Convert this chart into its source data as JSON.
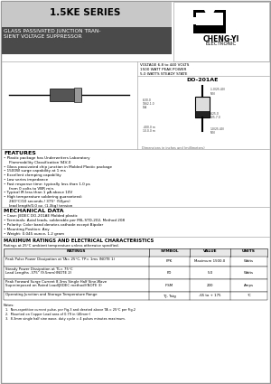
{
  "title": "1.5KE SERIES",
  "subtitle": "GLASS PASSIVATED JUNCTION TRAN-\nSIENT VOLTAGE SUPPRESSOR",
  "company": "CHENG-YI",
  "company_sub": "ELECTRONIC",
  "voltage_range": "VOLTAGE 6.8 to 440 VOLTS",
  "power1": "1500 WATT PEAK POWER",
  "power2": "5.0 WATTS STEADY STATE",
  "package": "DO-201AE",
  "features_title": "FEATURES",
  "features": [
    "Plastic package has Underwriters Laboratory",
    "  Flammability Classification 94V-0",
    "Glass passivated chip junction in Molded Plastic package",
    "1500W surge capability at 1 ms",
    "Excellent clamping capability",
    "Low series impedance",
    "Fast response time: typically less than 1.0 ps",
    "  from 0 volts to VBR min.",
    "Typical IR less than 1 μA above 10V",
    "High temperature soldering guaranteed:",
    "  260°C/10 seconds / 375° (50μm)",
    "  lead length/0.0 oz. (1.3kg) tension"
  ],
  "features_bullets": [
    true,
    false,
    true,
    true,
    true,
    true,
    true,
    false,
    true,
    true,
    false,
    false
  ],
  "mech_title": "MECHANICAL DATA",
  "mech_data": [
    "Case: JEDEC DO-201AE Molded plastic",
    "Terminals: Axial leads, solderable per MIL-STD-202, Method 208",
    "Polarity: Color band denotes cathode except Bipolar",
    "Mounting Position: Any",
    "Weight: 0.045 ounce, 1.2 gram"
  ],
  "max_ratings_title": "MAXIMUM RATINGS AND ELECTRICAL CHARACTERISTICS",
  "max_ratings_sub": "Ratings at 25°C ambient temperature unless otherwise specified.",
  "table_headers": [
    "RATINGS",
    "SYMBOL",
    "VALUE",
    "UNITS"
  ],
  "table_rows": [
    [
      "Peak Pulse Power Dissipation at TA= 25°C, TP= 1ms (NOTE 1)",
      "PPK",
      "Maximum 1500.0",
      "Watts"
    ],
    [
      "Steady Power Dissipation at TL= 75°C\nLead Lengths .375\" (9.5mm)(NOTE 2)",
      "PD",
      "5.0",
      "Watts"
    ],
    [
      "Peak Forward Surge Current 8.3ms Single Half Sine-Wave\nSuperimposed on Rated Load(JEDEC method)(NOTE 3)",
      "IFSM",
      "200",
      "Amps"
    ],
    [
      "Operating Junction and Storage Temperature Range",
      "TJ, Tstg",
      "-65 to + 175",
      "°C"
    ]
  ],
  "notes_title": "Notes:",
  "notes": [
    "1.  Non-repetitive current pulse, per Fig.3 and derated above TA = 25°C per Fig.2",
    "2.  Mounted on Copper Lead area of 0.79 in (40mm²)",
    "3.  8.3mm single half sine wave, duty cycle = 4 pulses minutes maximum."
  ],
  "bg_color": "#ffffff",
  "header_bg": "#c8c8c8",
  "subheader_bg": "#4a4a4a",
  "border_color": "#aaaaaa",
  "outer_border": "#999999"
}
